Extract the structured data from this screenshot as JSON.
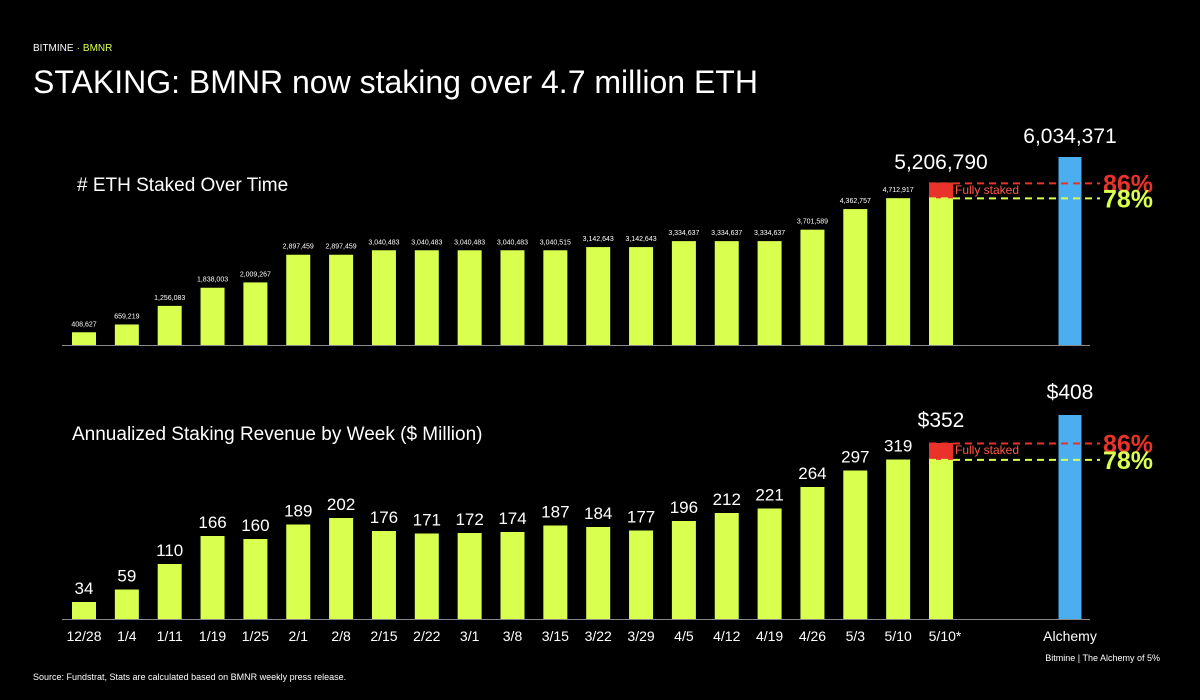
{
  "header": {
    "brand": "BITMINE",
    "separator": "·",
    "ticker": "BMNR"
  },
  "title": "STAKING: BMNR now staking over 4.7 million ETH",
  "chart_data": {
    "type": "bar",
    "categories": [
      "12/28",
      "1/4",
      "1/11",
      "1/19",
      "1/25",
      "2/1",
      "2/8",
      "2/15",
      "2/22",
      "3/1",
      "3/8",
      "3/15",
      "3/22",
      "3/29",
      "4/5",
      "4/12",
      "4/19",
      "4/26",
      "5/3",
      "5/10",
      "5/10*",
      "Alchemy"
    ],
    "colors": [
      "#d9ff4f",
      "#d9ff4f",
      "#d9ff4f",
      "#d9ff4f",
      "#d9ff4f",
      "#d9ff4f",
      "#d9ff4f",
      "#d9ff4f",
      "#d9ff4f",
      "#d9ff4f",
      "#d9ff4f",
      "#d9ff4f",
      "#d9ff4f",
      "#d9ff4f",
      "#d9ff4f",
      "#d9ff4f",
      "#d9ff4f",
      "#d9ff4f",
      "#d9ff4f",
      "#d9ff4f",
      "#d9ff4f",
      "#4aaef0"
    ],
    "fully_staked_label": "Fully staked",
    "fully_staked_color": "#e8322a",
    "reference_lines": [
      {
        "label": "86%",
        "value": 86,
        "color": "#e8322a"
      },
      {
        "label": "78%",
        "value": 78,
        "color": "#d9ff4f"
      }
    ],
    "panels": [
      {
        "title": "# ETH Staked Over Time",
        "values": [
          408627,
          659219,
          1256083,
          1838003,
          2009267,
          2897459,
          2897459,
          3040483,
          3040483,
          3040483,
          3040483,
          3040515,
          3142643,
          3142643,
          3334637,
          3334637,
          3334637,
          3701589,
          4362757,
          4712917,
          5206790,
          6034371
        ],
        "value_labels": [
          "408,627",
          "659,219",
          "1,256,083",
          "1,838,003",
          "2,009,267",
          "2,897,459",
          "2,897,459",
          "3,040,483",
          "3,040,483",
          "3,040,483",
          "3,040,483",
          "3,040,515",
          "3,142,643",
          "3,142,643",
          "3,334,637",
          "3,334,637",
          "3,334,637",
          "3,701,589",
          "4,362,757",
          "4,712,917",
          "5,206,790",
          "6,034,371"
        ]
      },
      {
        "title": "Annualized Staking Revenue by Week ($ Million)",
        "values": [
          34,
          59,
          110,
          166,
          160,
          189,
          202,
          176,
          171,
          172,
          174,
          187,
          184,
          177,
          196,
          212,
          221,
          264,
          297,
          319,
          352,
          408
        ],
        "value_labels": [
          "34",
          "59",
          "110",
          "166",
          "160",
          "189",
          "202",
          "176",
          "171",
          "172",
          "174",
          "187",
          "184",
          "177",
          "196",
          "212",
          "221",
          "264",
          "297",
          "319",
          "$352",
          "$408"
        ]
      }
    ]
  },
  "footer": {
    "source": "Source: Fundstrat, Stats are calculated based on BMNR weekly press release.",
    "credit": "Bitmine | The Alchemy of 5%"
  }
}
